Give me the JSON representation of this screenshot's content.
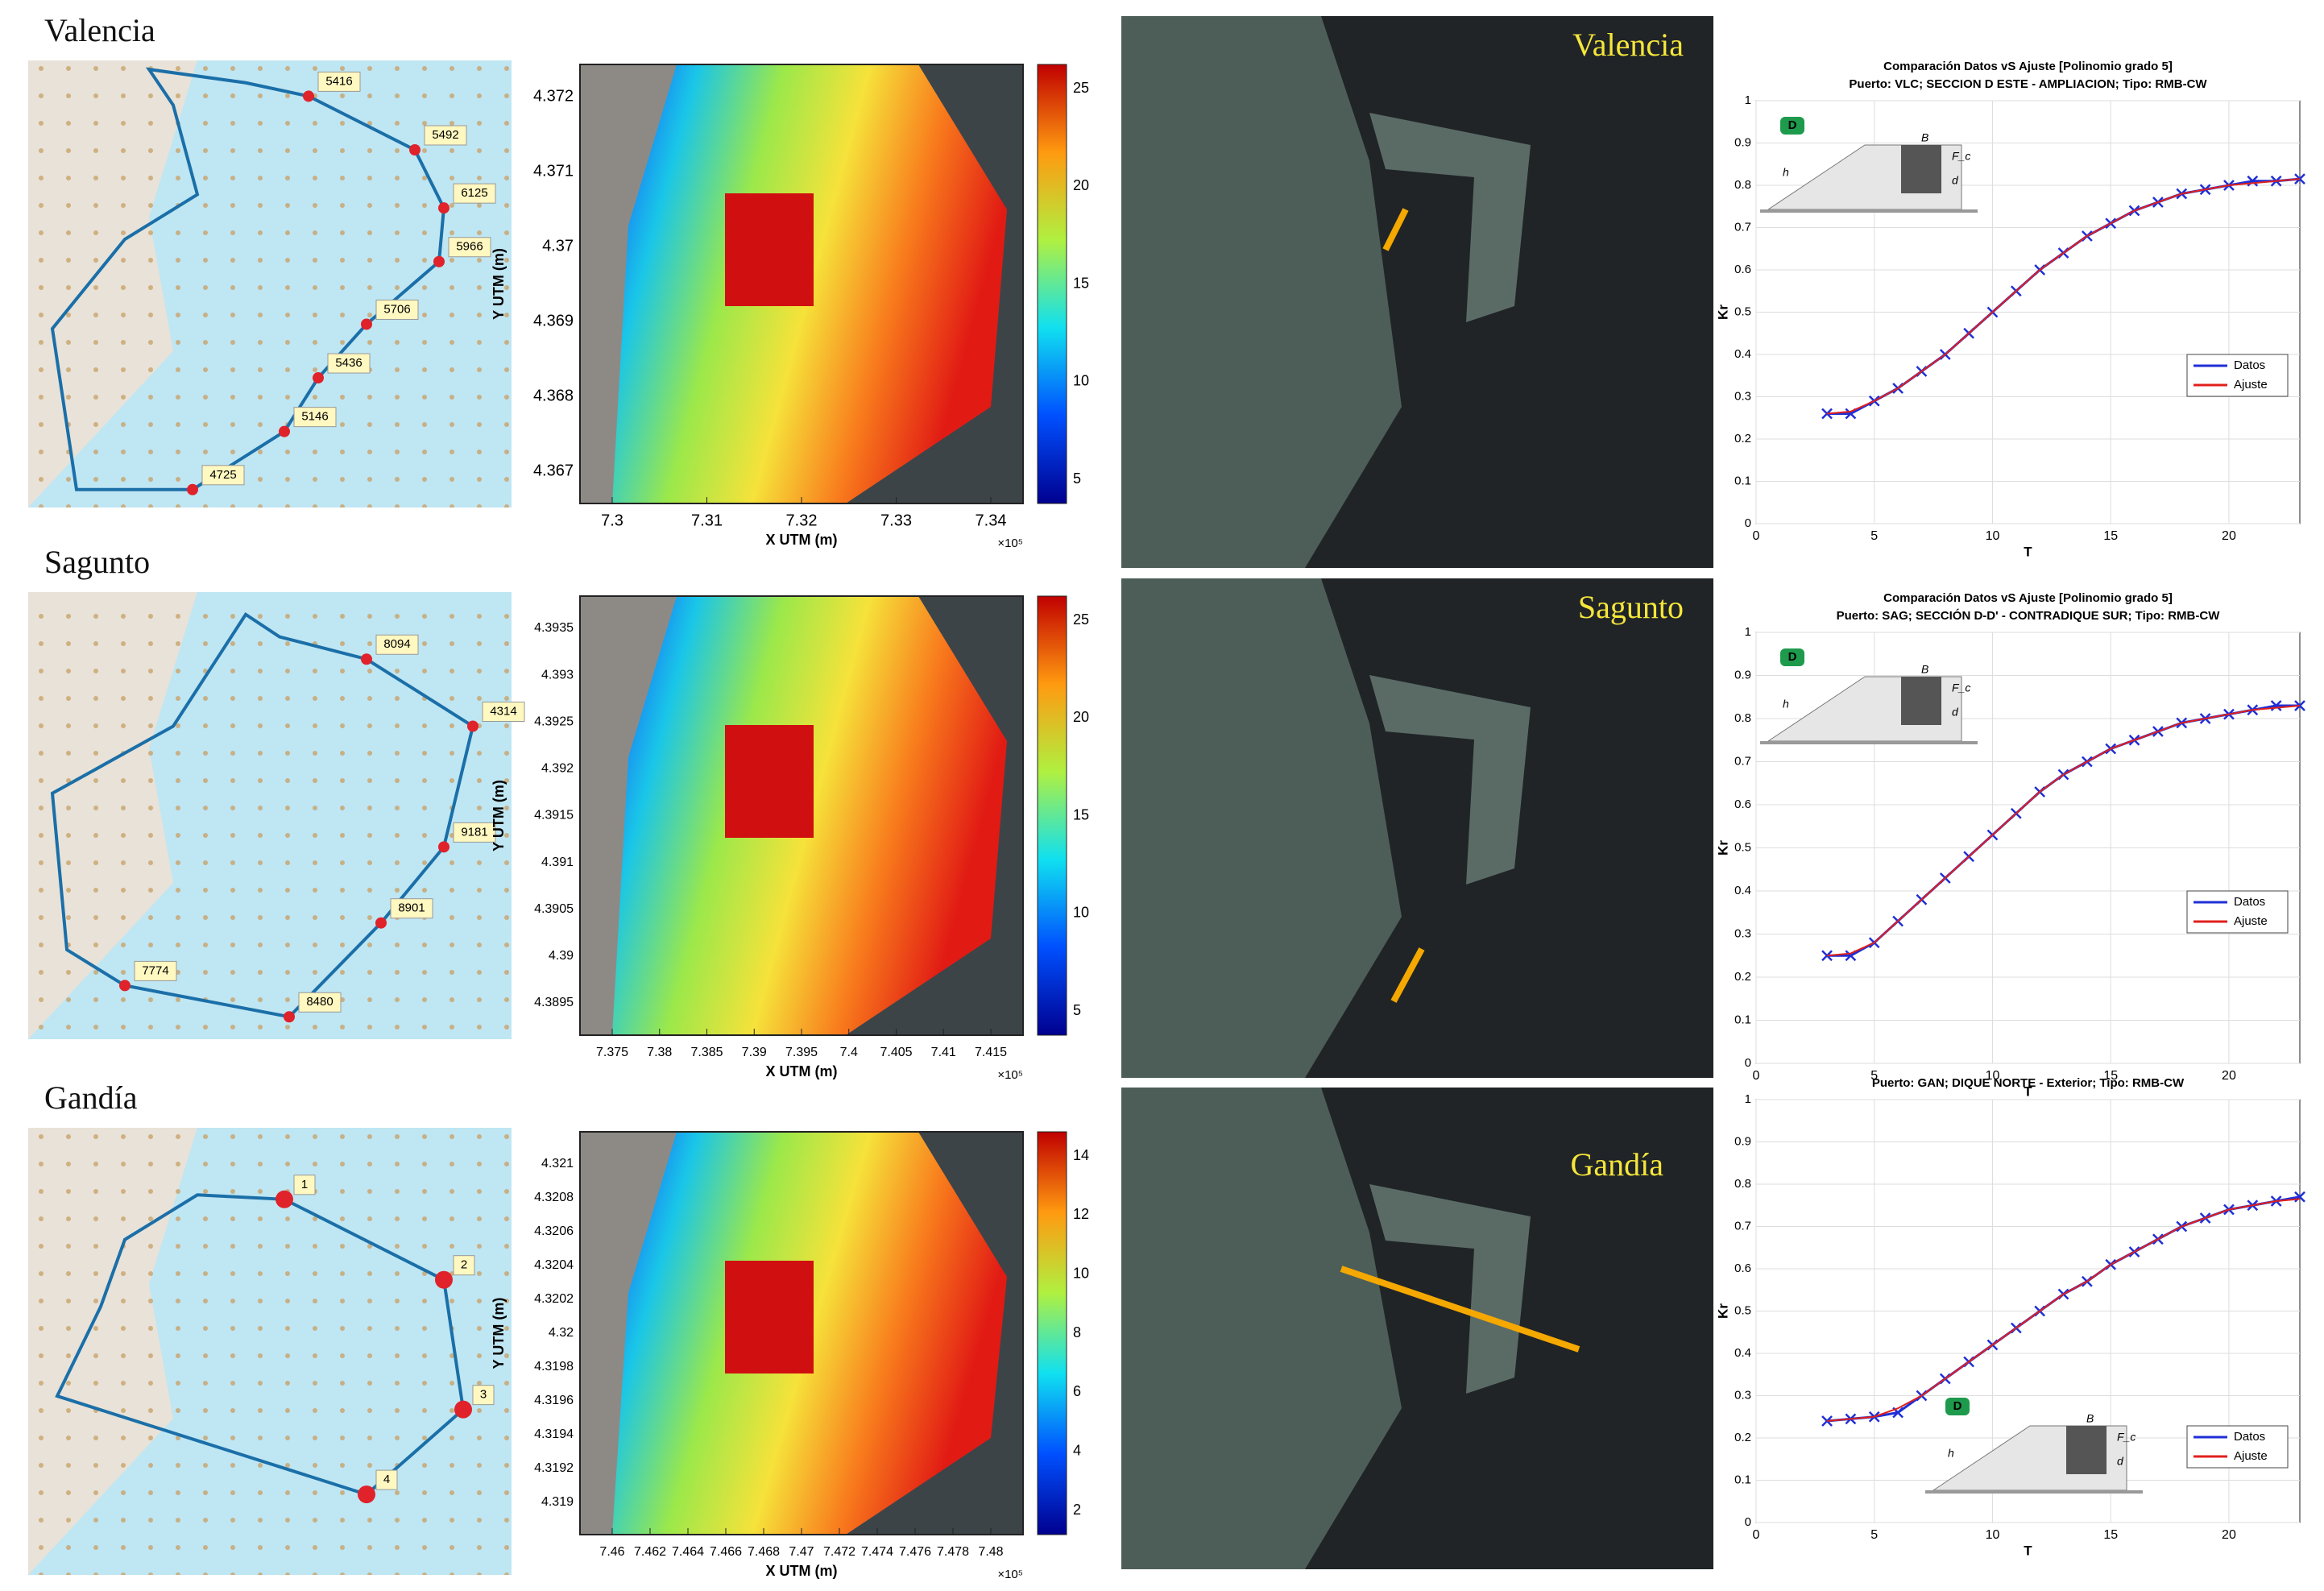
{
  "panels": [
    {
      "port": "Valencia",
      "map_nodes": [
        "5416",
        "5492",
        "6125",
        "5966",
        "5706",
        "5436",
        "5146",
        "4725"
      ],
      "heatmap": {
        "xlabel": "X UTM (m)",
        "ylabel": "Y UTM (m)",
        "x_exponent": "×10⁵",
        "xticks": [
          7.3,
          7.31,
          7.32,
          7.33,
          7.34
        ],
        "yticks": [
          4.372,
          4.371,
          4.37,
          4.369,
          4.368,
          4.367
        ],
        "cbar_ticks": [
          25,
          20,
          15,
          10,
          5
        ]
      },
      "dark_label": "Valencia",
      "plot": {
        "titles": [
          "Comparación Datos vS Ajuste [Polinomio grado 5]",
          "Puerto: VLC;  SECCION D ESTE - AMPLIACION; Tipo: RMB-CW"
        ],
        "xlabel": "T",
        "ylabel": "Kr",
        "badge": "D",
        "inset": [
          "B",
          "F_c",
          "d",
          "h"
        ],
        "xlim": [
          0,
          23
        ],
        "ylim": [
          0,
          1
        ],
        "xticks": [
          0,
          5,
          10,
          15,
          20
        ],
        "yticks": [
          0,
          0.1,
          0.2,
          0.3,
          0.4,
          0.5,
          0.6,
          0.7,
          0.8,
          0.9,
          1
        ],
        "x": [
          3,
          4,
          5,
          6,
          7,
          8,
          9,
          10,
          11,
          12,
          13,
          14,
          15,
          16,
          17,
          18,
          19,
          20,
          21,
          22,
          23
        ],
        "series": [
          {
            "name": "Datos",
            "color": "#1f2fd6",
            "values": [
              0.26,
              0.26,
              0.29,
              0.32,
              0.36,
              0.4,
              0.45,
              0.5,
              0.55,
              0.6,
              0.64,
              0.68,
              0.71,
              0.74,
              0.76,
              0.78,
              0.79,
              0.8,
              0.81,
              0.81,
              0.815
            ]
          },
          {
            "name": "Ajuste",
            "color": "#e0201c",
            "values": [
              0.26,
              0.265,
              0.29,
              0.32,
              0.36,
              0.4,
              0.45,
              0.5,
              0.55,
              0.6,
              0.64,
              0.68,
              0.71,
              0.74,
              0.76,
              0.78,
              0.79,
              0.8,
              0.805,
              0.81,
              0.815
            ]
          }
        ]
      }
    },
    {
      "port": "Sagunto",
      "map_nodes": [
        "8094",
        "4314",
        "9181",
        "8901",
        "8480",
        "7774"
      ],
      "heatmap": {
        "xlabel": "X UTM (m)",
        "ylabel": "Y UTM (m)",
        "x_exponent": "×10⁵",
        "xticks": [
          7.375,
          7.38,
          7.385,
          7.39,
          7.395,
          7.4,
          7.405,
          7.41,
          7.415
        ],
        "yticks": [
          4.3935,
          4.393,
          4.3925,
          4.392,
          4.3915,
          4.391,
          4.3905,
          4.39,
          4.3895
        ],
        "cbar_ticks": [
          25,
          20,
          15,
          10,
          5
        ]
      },
      "dark_label": "Sagunto",
      "plot": {
        "titles": [
          "Comparación Datos vS Ajuste [Polinomio grado 5]",
          "Puerto: SAG;  SECCIÓN D-D' - CONTRADIQUE SUR; Tipo: RMB-CW"
        ],
        "xlabel": "T",
        "ylabel": "Kr",
        "badge": "D",
        "inset": [
          "B",
          "F_c",
          "d",
          "h"
        ],
        "xlim": [
          0,
          23
        ],
        "ylim": [
          0,
          1
        ],
        "xticks": [
          0,
          5,
          10,
          15,
          20
        ],
        "yticks": [
          0,
          0.1,
          0.2,
          0.3,
          0.4,
          0.5,
          0.6,
          0.7,
          0.8,
          0.9,
          1
        ],
        "x": [
          3,
          4,
          5,
          6,
          7,
          8,
          9,
          10,
          11,
          12,
          13,
          14,
          15,
          16,
          17,
          18,
          19,
          20,
          21,
          22,
          23
        ],
        "series": [
          {
            "name": "Datos",
            "color": "#1f2fd6",
            "values": [
              0.25,
              0.25,
              0.28,
              0.33,
              0.38,
              0.43,
              0.48,
              0.53,
              0.58,
              0.63,
              0.67,
              0.7,
              0.73,
              0.75,
              0.77,
              0.79,
              0.8,
              0.81,
              0.82,
              0.83,
              0.83
            ]
          },
          {
            "name": "Ajuste",
            "color": "#e0201c",
            "values": [
              0.25,
              0.255,
              0.28,
              0.33,
              0.38,
              0.43,
              0.48,
              0.53,
              0.58,
              0.63,
              0.67,
              0.7,
              0.73,
              0.75,
              0.77,
              0.79,
              0.8,
              0.81,
              0.82,
              0.825,
              0.83
            ]
          }
        ]
      }
    },
    {
      "port": "Gandía",
      "map_nodes": [
        "1",
        "2",
        "3",
        "4"
      ],
      "heatmap": {
        "xlabel": "X UTM (m)",
        "ylabel": "Y UTM (m)",
        "x_exponent": "×10⁵",
        "xticks": [
          7.46,
          7.462,
          7.464,
          7.466,
          7.468,
          7.47,
          7.472,
          7.474,
          7.476,
          7.478,
          7.48
        ],
        "yticks": [
          4.321,
          4.3208,
          4.3206,
          4.3204,
          4.3202,
          4.32,
          4.3198,
          4.3196,
          4.3194,
          4.3192,
          4.319
        ],
        "cbar_ticks": [
          14,
          12,
          10,
          8,
          6,
          4,
          2
        ]
      },
      "dark_label": "Gandía",
      "plot": {
        "titles": [
          "Puerto: GAN;  DIQUE NORTE - Exterior; Tipo: RMB-CW"
        ],
        "xlabel": "T",
        "ylabel": "Kr",
        "badge": "D",
        "inset": [
          "B",
          "F_c",
          "d",
          "h"
        ],
        "xlim": [
          0,
          23
        ],
        "ylim": [
          0,
          1
        ],
        "xticks": [
          0,
          5,
          10,
          15,
          20
        ],
        "yticks": [
          0,
          0.1,
          0.2,
          0.3,
          0.4,
          0.5,
          0.6,
          0.7,
          0.8,
          0.9,
          1
        ],
        "x": [
          3,
          4,
          5,
          6,
          7,
          8,
          9,
          10,
          11,
          12,
          13,
          14,
          15,
          16,
          17,
          18,
          19,
          20,
          21,
          22,
          23
        ],
        "series": [
          {
            "name": "Datos",
            "color": "#1f2fd6",
            "values": [
              0.24,
              0.245,
              0.25,
              0.26,
              0.3,
              0.34,
              0.38,
              0.42,
              0.46,
              0.5,
              0.54,
              0.57,
              0.61,
              0.64,
              0.67,
              0.7,
              0.72,
              0.74,
              0.75,
              0.76,
              0.77
            ]
          },
          {
            "name": "Ajuste",
            "color": "#e0201c",
            "values": [
              0.24,
              0.245,
              0.25,
              0.27,
              0.3,
              0.34,
              0.38,
              0.42,
              0.46,
              0.5,
              0.54,
              0.57,
              0.61,
              0.64,
              0.67,
              0.7,
              0.72,
              0.74,
              0.75,
              0.76,
              0.765
            ]
          }
        ]
      }
    }
  ]
}
